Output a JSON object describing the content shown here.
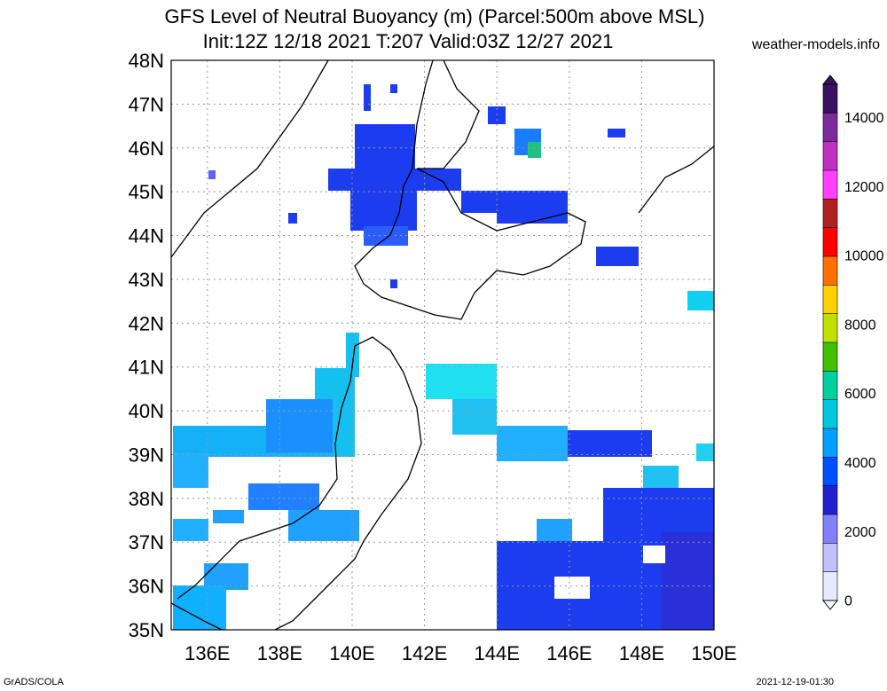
{
  "header": {
    "title": "GFS Level of Neutral Buoyancy (m) (Parcel:500m above MSL)",
    "subtitle": "Init:12Z 12/18 2021 T:207 Valid:03Z 12/27 2021",
    "site": "weather-models.info"
  },
  "map": {
    "lat_labels": [
      "48N",
      "47N",
      "46N",
      "45N",
      "44N",
      "43N",
      "42N",
      "41N",
      "40N",
      "39N",
      "38N",
      "37N",
      "36N",
      "35N"
    ],
    "lon_labels": [
      "136E",
      "138E",
      "140E",
      "142E",
      "144E",
      "146E",
      "148E",
      "150E"
    ]
  },
  "colorbar": {
    "labels": [
      "14000",
      "12000",
      "10000",
      "8000",
      "6000",
      "4000",
      "2000",
      "0"
    ],
    "colors": [
      "#3a1060",
      "#7d2a9a",
      "#c030c0",
      "#ff40ff",
      "#b02020",
      "#ff0000",
      "#ff7000",
      "#ffd000",
      "#c0e000",
      "#40c000",
      "#00d0a0",
      "#00c8e0",
      "#00a0ff",
      "#0050ff",
      "#2020d0",
      "#8080ff",
      "#c0c0ff",
      "#e8e8ff"
    ]
  },
  "footer": {
    "left": "GrADS/COLA",
    "right": "2021-12-19-01:30"
  }
}
